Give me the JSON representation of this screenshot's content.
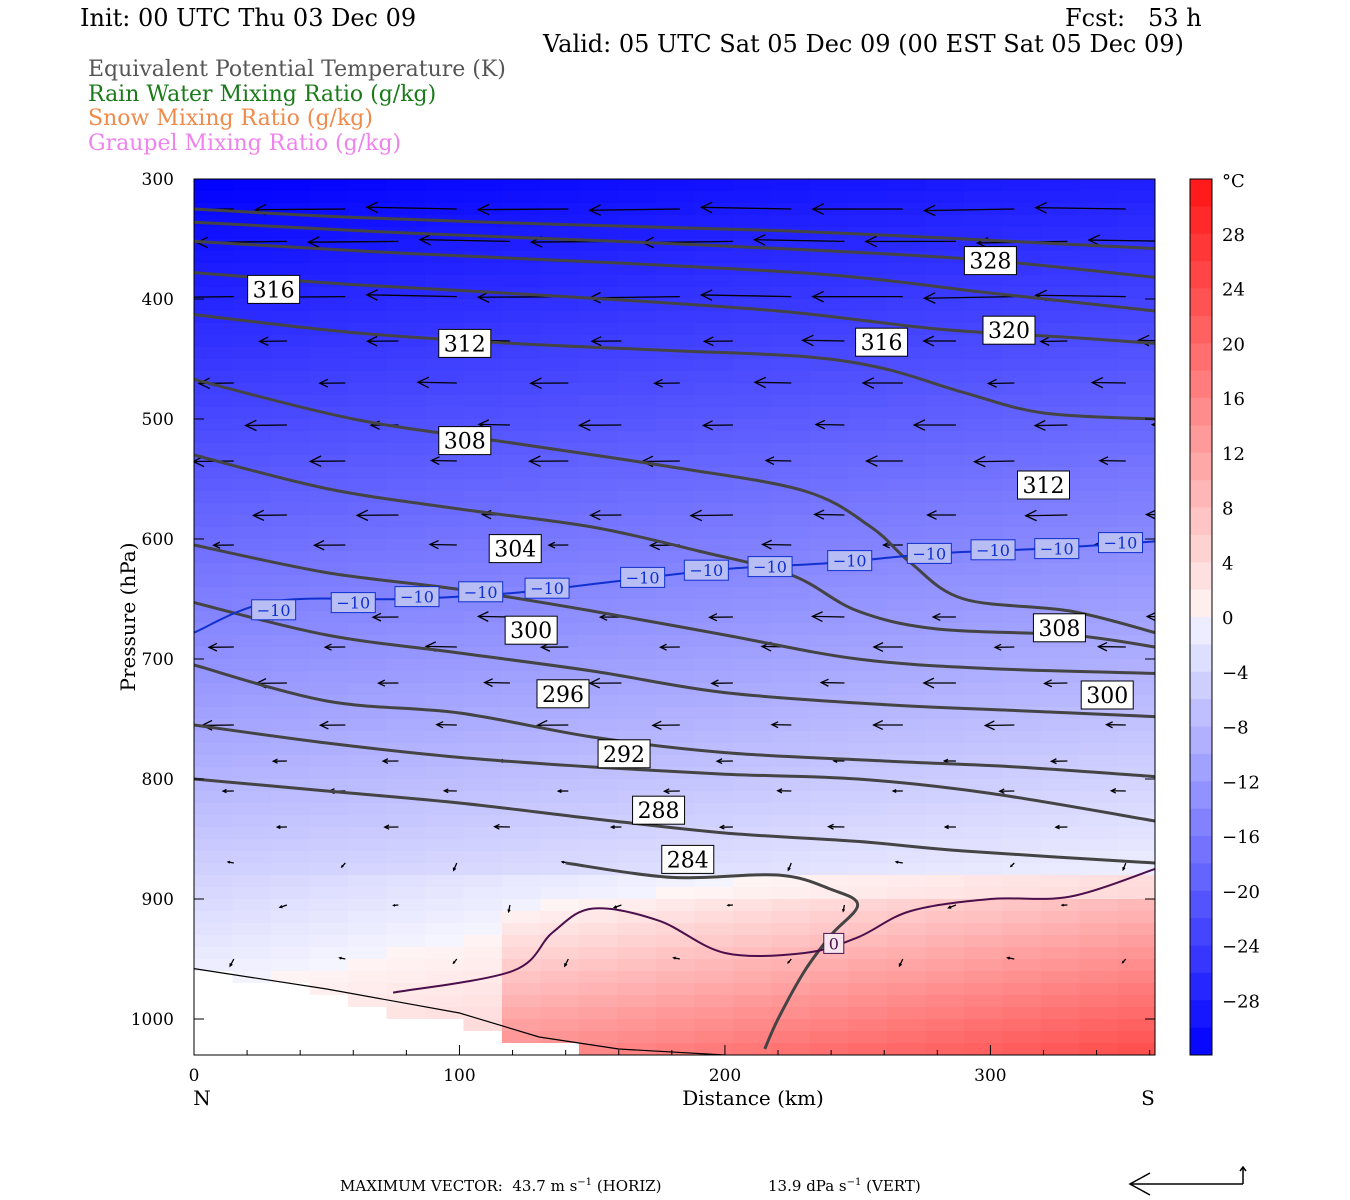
{
  "header": {
    "init": "Init: 00 UTC Thu 03 Dec 09",
    "fcst": "Fcst:   53 h",
    "valid": "Valid: 05 UTC Sat 05 Dec 09 (00 EST Sat 05 Dec 09)"
  },
  "legend": [
    {
      "label": "Equivalent Potential Temperature (K)",
      "color": "#555555"
    },
    {
      "label": "Rain Water Mixing Ratio (g/kg)",
      "color": "#1a7a1a"
    },
    {
      "label": "Snow Mixing Ratio (g/kg)",
      "color": "#f08a4b"
    },
    {
      "label": "Graupel Mixing Ratio (g/kg)",
      "color": "#ee82ee"
    }
  ],
  "footer": {
    "max_vector_label": "MAXIMUM VECTOR:",
    "horiz_value": "43.7",
    "horiz_unit": "m s",
    "horiz_exp": "−1",
    "horiz_tag": "(HORIZ)",
    "vert_value": "13.9",
    "vert_unit": "dPa s",
    "vert_exp": "−1",
    "vert_tag": "(VERT)"
  },
  "chart_data": {
    "type": "heatmap",
    "xlabel": "Distance (km)",
    "ylabel": "Pressure (hPa)",
    "x_ticks": [
      0,
      100,
      200,
      300
    ],
    "xlim": [
      0,
      362
    ],
    "y_ticks": [
      300,
      400,
      500,
      600,
      700,
      800,
      900,
      1000
    ],
    "ylim": [
      1030,
      300
    ],
    "y_scale": "linear",
    "direction_left": "N",
    "direction_right": "S",
    "colorbar": {
      "unit": "°C",
      "ticks": [
        28,
        24,
        20,
        16,
        12,
        8,
        4,
        0,
        -4,
        -8,
        -12,
        -16,
        -20,
        -24,
        -28
      ],
      "range": [
        -32,
        32
      ]
    },
    "theta_e_contours": [
      {
        "level": 328,
        "points": [
          [
            0,
            325
          ],
          [
            60,
            332
          ],
          [
            140,
            338
          ],
          [
            220,
            343
          ],
          [
            290,
            350
          ],
          [
            362,
            358
          ]
        ]
      },
      {
        "level": 324,
        "points": [
          [
            0,
            336
          ],
          [
            80,
            345
          ],
          [
            160,
            352
          ],
          [
            240,
            360
          ],
          [
            300,
            368
          ],
          [
            362,
            382
          ]
        ]
      },
      {
        "level": 320,
        "points": [
          [
            0,
            352
          ],
          [
            80,
            362
          ],
          [
            160,
            370
          ],
          [
            240,
            380
          ],
          [
            300,
            395
          ],
          [
            362,
            410
          ]
        ]
      },
      {
        "level": 316,
        "points": [
          [
            0,
            378
          ],
          [
            60,
            388
          ],
          [
            140,
            398
          ],
          [
            220,
            410
          ],
          [
            280,
            425
          ],
          [
            330,
            432
          ],
          [
            362,
            437
          ]
        ]
      },
      {
        "level": 312,
        "points": [
          [
            0,
            413
          ],
          [
            60,
            428
          ],
          [
            120,
            437
          ],
          [
            180,
            443
          ],
          [
            230,
            448
          ],
          [
            260,
            458
          ],
          [
            290,
            478
          ],
          [
            320,
            495
          ],
          [
            362,
            500
          ]
        ]
      },
      {
        "level": 312,
        "points": [
          [
            0,
            467
          ],
          [
            60,
            500
          ],
          [
            120,
            520
          ],
          [
            180,
            540
          ],
          [
            230,
            560
          ],
          [
            255,
            590
          ],
          [
            270,
            620
          ],
          [
            290,
            650
          ],
          [
            330,
            660
          ],
          [
            362,
            678
          ]
        ]
      },
      {
        "level": 308,
        "points": [
          [
            0,
            530
          ],
          [
            50,
            558
          ],
          [
            100,
            575
          ],
          [
            150,
            590
          ],
          [
            190,
            610
          ],
          [
            225,
            630
          ],
          [
            250,
            660
          ],
          [
            280,
            675
          ],
          [
            330,
            680
          ],
          [
            362,
            690
          ]
        ]
      },
      {
        "level": 304,
        "points": [
          [
            0,
            605
          ],
          [
            50,
            628
          ],
          [
            100,
            642
          ],
          [
            150,
            660
          ],
          [
            200,
            680
          ],
          [
            250,
            700
          ],
          [
            300,
            708
          ],
          [
            362,
            712
          ]
        ]
      },
      {
        "level": 300,
        "points": [
          [
            0,
            653
          ],
          [
            50,
            680
          ],
          [
            100,
            695
          ],
          [
            150,
            710
          ],
          [
            200,
            728
          ],
          [
            260,
            738
          ],
          [
            310,
            743
          ],
          [
            362,
            748
          ]
        ]
      },
      {
        "level": 296,
        "points": [
          [
            0,
            705
          ],
          [
            50,
            735
          ],
          [
            100,
            745
          ],
          [
            150,
            765
          ],
          [
            200,
            778
          ],
          [
            260,
            785
          ],
          [
            310,
            790
          ],
          [
            362,
            798
          ]
        ]
      },
      {
        "level": 292,
        "points": [
          [
            0,
            755
          ],
          [
            50,
            770
          ],
          [
            100,
            782
          ],
          [
            150,
            790
          ],
          [
            200,
            796
          ],
          [
            250,
            800
          ],
          [
            300,
            812
          ],
          [
            362,
            835
          ]
        ]
      },
      {
        "level": 288,
        "points": [
          [
            0,
            800
          ],
          [
            50,
            810
          ],
          [
            100,
            820
          ],
          [
            150,
            833
          ],
          [
            200,
            845
          ],
          [
            250,
            852
          ],
          [
            290,
            860
          ],
          [
            362,
            870
          ]
        ]
      },
      {
        "level": 284,
        "points": [
          [
            140,
            870
          ],
          [
            180,
            882
          ],
          [
            220,
            880
          ],
          [
            240,
            892
          ],
          [
            250,
            905
          ],
          [
            240,
            930
          ],
          [
            230,
            960
          ],
          [
            220,
            1000
          ],
          [
            215,
            1025
          ]
        ]
      }
    ],
    "temp_contours": [
      {
        "level": -10,
        "points": [
          [
            0,
            678
          ],
          [
            30,
            652
          ],
          [
            80,
            650
          ],
          [
            120,
            645
          ],
          [
            160,
            635
          ],
          [
            200,
            625
          ],
          [
            240,
            620
          ],
          [
            280,
            612
          ],
          [
            320,
            608
          ],
          [
            362,
            602
          ]
        ]
      },
      {
        "level": 0,
        "points": [
          [
            75,
            978
          ],
          [
            120,
            960
          ],
          [
            135,
            928
          ],
          [
            150,
            908
          ],
          [
            175,
            918
          ],
          [
            200,
            945
          ],
          [
            230,
            945
          ],
          [
            250,
            932
          ],
          [
            270,
            910
          ],
          [
            300,
            900
          ],
          [
            330,
            898
          ],
          [
            362,
            875
          ]
        ]
      }
    ],
    "contour_labels": [
      {
        "text": "328",
        "x": 300,
        "y": 368
      },
      {
        "text": "316",
        "x": 30,
        "y": 392
      },
      {
        "text": "320",
        "x": 307,
        "y": 426
      },
      {
        "text": "312",
        "x": 102,
        "y": 437
      },
      {
        "text": "316",
        "x": 259,
        "y": 436
      },
      {
        "text": "308",
        "x": 102,
        "y": 518
      },
      {
        "text": "312",
        "x": 320,
        "y": 555
      },
      {
        "text": "304",
        "x": 121,
        "y": 608
      },
      {
        "text": "300",
        "x": 127,
        "y": 676
      },
      {
        "text": "308",
        "x": 326,
        "y": 674
      },
      {
        "text": "296",
        "x": 139,
        "y": 729
      },
      {
        "text": "300",
        "x": 344,
        "y": 730
      },
      {
        "text": "292",
        "x": 162,
        "y": 779
      },
      {
        "text": "288",
        "x": 175,
        "y": 826
      },
      {
        "text": "284",
        "x": 186,
        "y": 867
      }
    ],
    "temp_labels": [
      {
        "text": "−10",
        "x": 30,
        "y": 659
      },
      {
        "text": "−10",
        "x": 60,
        "y": 653
      },
      {
        "text": "−10",
        "x": 84,
        "y": 648
      },
      {
        "text": "−10",
        "x": 108,
        "y": 644
      },
      {
        "text": "−10",
        "x": 133,
        "y": 641
      },
      {
        "text": "−10",
        "x": 169,
        "y": 632
      },
      {
        "text": "−10",
        "x": 193,
        "y": 626
      },
      {
        "text": "−10",
        "x": 217,
        "y": 623
      },
      {
        "text": "−10",
        "x": 247,
        "y": 618
      },
      {
        "text": "−10",
        "x": 277,
        "y": 612
      },
      {
        "text": "−10",
        "x": 301,
        "y": 609
      },
      {
        "text": "−10",
        "x": 325,
        "y": 608
      },
      {
        "text": "−10",
        "x": 349,
        "y": 603
      },
      {
        "text": "0",
        "x": 241,
        "y": 937
      }
    ],
    "wind_vector_rows_hpa": [
      325,
      352,
      398,
      435,
      470,
      505,
      535,
      580,
      605,
      665,
      690,
      720,
      755,
      785,
      810,
      840,
      870,
      905,
      950
    ]
  }
}
